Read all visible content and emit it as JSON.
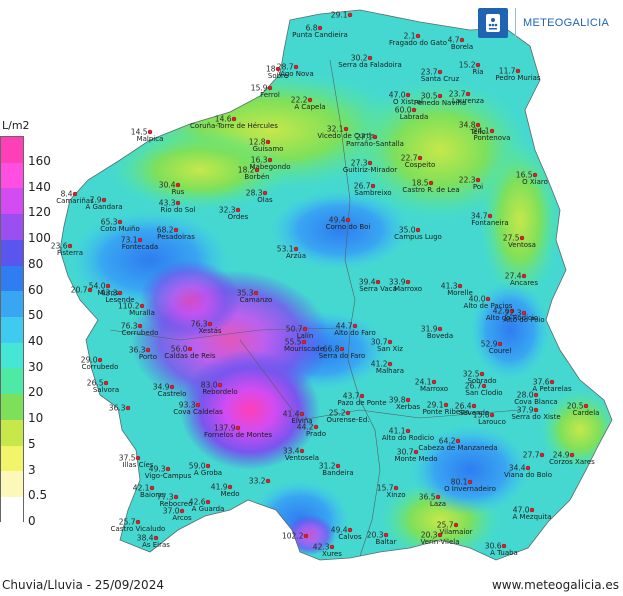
{
  "header": {
    "brand": "METEOGALICIA"
  },
  "legend": {
    "title": "L/m2",
    "levels": [
      {
        "label": "160",
        "color": "#ff3fb5"
      },
      {
        "label": "140",
        "color": "#ff4fe0"
      },
      {
        "label": "120",
        "color": "#d24cf2"
      },
      {
        "label": "100",
        "color": "#9a4ff0"
      },
      {
        "label": "80",
        "color": "#5a55ee"
      },
      {
        "label": "60",
        "color": "#2f7df0"
      },
      {
        "label": "50",
        "color": "#39a6f2"
      },
      {
        "label": "40",
        "color": "#3fcaf0"
      },
      {
        "label": "30",
        "color": "#45e6d6"
      },
      {
        "label": "20",
        "color": "#4fe9a6"
      },
      {
        "label": "10",
        "color": "#7ee05a"
      },
      {
        "label": "5",
        "color": "#c6e84a"
      },
      {
        "label": "3",
        "color": "#f2f56a"
      },
      {
        "label": "0.5",
        "color": "#fbf8b8"
      },
      {
        "label": "0",
        "color": "#ffffff"
      }
    ]
  },
  "footer": {
    "caption": "Chuvia/Lluvia - 25/09/2024",
    "website": "www.meteogalicia.es"
  },
  "stations": [
    {
      "v": "29.1",
      "n": "",
      "gx": 350,
      "gy": 15
    },
    {
      "v": "6.8",
      "n": "Punta Candieira",
      "gx": 320,
      "gy": 28
    },
    {
      "v": "2.1",
      "n": "Fragado do Gato",
      "gx": 418,
      "gy": 36
    },
    {
      "v": "4.7",
      "n": "Borela",
      "gx": 462,
      "gy": 40
    },
    {
      "v": "30.2",
      "n": "Serra da Faladoira",
      "gx": 370,
      "gy": 58
    },
    {
      "v": "28.7",
      "n": "Vigo Nova",
      "gx": 296,
      "gy": 67
    },
    {
      "v": "18",
      "n": "Sobre",
      "gx": 278,
      "gy": 69
    },
    {
      "v": "23.7",
      "n": "Santa Cruz",
      "gx": 440,
      "gy": 72
    },
    {
      "v": "15.2",
      "n": "Ría",
      "gx": 478,
      "gy": 65
    },
    {
      "v": "11.7",
      "n": "Pedro Murias",
      "gx": 518,
      "gy": 71
    },
    {
      "v": "15.9",
      "n": "Ferrol",
      "gx": 270,
      "gy": 88
    },
    {
      "v": "22.2",
      "n": "A Capela",
      "gx": 310,
      "gy": 100
    },
    {
      "v": "47.0",
      "n": "O Xistral",
      "gx": 408,
      "gy": 95
    },
    {
      "v": "30.5",
      "n": "Penedo Naviña",
      "gx": 440,
      "gy": 96
    },
    {
      "v": "23.7",
      "n": "Laurenza",
      "gx": 468,
      "gy": 94
    },
    {
      "v": "60.0",
      "n": "Labrada",
      "gx": 414,
      "gy": 110
    },
    {
      "v": "14.6",
      "n": "Coruña-Torre de Hércules",
      "gx": 234,
      "gy": 119
    },
    {
      "v": "34.8",
      "n": "Tello",
      "gx": 478,
      "gy": 125
    },
    {
      "v": "24.1",
      "n": "Pontenova",
      "gx": 492,
      "gy": 131
    },
    {
      "v": "14.5",
      "n": "Malpica",
      "gx": 150,
      "gy": 132
    },
    {
      "v": "32.1",
      "n": "Vicedo de Curtis",
      "gx": 346,
      "gy": 129
    },
    {
      "v": "27.1",
      "n": "Parraño-Santalla",
      "gx": 375,
      "gy": 137
    },
    {
      "v": "12.8",
      "n": "Guísamo",
      "gx": 268,
      "gy": 142
    },
    {
      "v": "16.3",
      "n": "Mabegondo",
      "gx": 270,
      "gy": 160
    },
    {
      "v": "27.3",
      "n": "Guitiriz-Mirador",
      "gx": 370,
      "gy": 163
    },
    {
      "v": "22.7",
      "n": "Cospeito",
      "gx": 420,
      "gy": 158
    },
    {
      "v": "18.2",
      "n": "Borbén",
      "gx": 257,
      "gy": 170
    },
    {
      "v": "16.5",
      "n": "O Xiaro",
      "gx": 535,
      "gy": 175
    },
    {
      "v": "22.3",
      "n": "Poi",
      "gx": 478,
      "gy": 180
    },
    {
      "v": "30.4",
      "n": "Rus",
      "gx": 178,
      "gy": 185
    },
    {
      "v": "26.7",
      "n": "Sambreixo",
      "gx": 373,
      "gy": 186
    },
    {
      "v": "18.5",
      "n": "Castro R. de Lea",
      "gx": 431,
      "gy": 183
    },
    {
      "v": "8.4",
      "n": "Camariñas",
      "gx": 75,
      "gy": 194
    },
    {
      "v": "7.9",
      "n": "A Gandara",
      "gx": 104,
      "gy": 200
    },
    {
      "v": "28.3",
      "n": "Olas",
      "gx": 265,
      "gy": 193
    },
    {
      "v": "43.3",
      "n": "Río do Sol",
      "gx": 178,
      "gy": 203
    },
    {
      "v": "32.3",
      "n": "Ordes",
      "gx": 238,
      "gy": 210
    },
    {
      "v": "34.7",
      "n": "Fontaneira",
      "gx": 490,
      "gy": 216
    },
    {
      "v": "65.3",
      "n": "Coto Muiño",
      "gx": 120,
      "gy": 222
    },
    {
      "v": "49.4",
      "n": "Corno do Boi",
      "gx": 348,
      "gy": 220
    },
    {
      "v": "68.2",
      "n": "Pesadoiras",
      "gx": 176,
      "gy": 230
    },
    {
      "v": "35.0",
      "n": "Campus Lugo",
      "gx": 418,
      "gy": 230
    },
    {
      "v": "27.5",
      "n": "Ventosa",
      "gx": 522,
      "gy": 238
    },
    {
      "v": "73.1",
      "n": "Fontecada",
      "gx": 140,
      "gy": 240
    },
    {
      "v": "23.6",
      "n": "Fisterra",
      "gx": 70,
      "gy": 246
    },
    {
      "v": "53.1",
      "n": "Arzúa",
      "gx": 296,
      "gy": 249
    },
    {
      "v": "27.4",
      "n": "Ancares",
      "gx": 524,
      "gy": 276
    },
    {
      "v": "39.4",
      "n": "Serra Vaca",
      "gx": 378,
      "gy": 282
    },
    {
      "v": "33.9",
      "n": "Marroxo",
      "gx": 408,
      "gy": 282
    },
    {
      "v": "41.3",
      "n": "Morelle",
      "gx": 460,
      "gy": 286
    },
    {
      "v": "20.7",
      "n": "",
      "gx": 90,
      "gy": 290
    },
    {
      "v": "54.0",
      "n": "Muros",
      "gx": 108,
      "gy": 286
    },
    {
      "v": "43.3",
      "n": "Lesende",
      "gx": 120,
      "gy": 293
    },
    {
      "v": "35.3",
      "n": "Camanzo",
      "gx": 256,
      "gy": 293
    },
    {
      "v": "40.0",
      "n": "Alto de Pacios",
      "gx": 488,
      "gy": 299
    },
    {
      "v": "110.2",
      "n": "Muralla",
      "gx": 142,
      "gy": 306
    },
    {
      "v": "42.6",
      "n": "Alto do Rodicio",
      "gx": 512,
      "gy": 311
    },
    {
      "v": "72.3",
      "n": "Alto do Poio",
      "gx": 524,
      "gy": 313
    },
    {
      "v": "76.3",
      "n": "Xestás",
      "gx": 210,
      "gy": 324
    },
    {
      "v": "50.7",
      "n": "Lalín",
      "gx": 305,
      "gy": 329
    },
    {
      "v": "44.7",
      "n": "Alto do Faro",
      "gx": 355,
      "gy": 326
    },
    {
      "v": "31.9",
      "n": "Boveda",
      "gx": 440,
      "gy": 329
    },
    {
      "v": "76.3",
      "n": "Corrubedo",
      "gx": 140,
      "gy": 326
    },
    {
      "v": "55.5",
      "n": "Mouriscade",
      "gx": 304,
      "gy": 342
    },
    {
      "v": "30.7",
      "n": "San Xiz",
      "gx": 390,
      "gy": 342
    },
    {
      "v": "52.9",
      "n": "Courel",
      "gx": 500,
      "gy": 344
    },
    {
      "v": "36.3",
      "n": "Porto",
      "gx": 148,
      "gy": 350
    },
    {
      "v": "56.0",
      "n": "Caldas de Reis",
      "gx": 190,
      "gy": 349
    },
    {
      "v": "66.8",
      "n": "Serra do Faro",
      "gx": 342,
      "gy": 349
    },
    {
      "v": "29.0",
      "n": "Corrubedo",
      "gx": 100,
      "gy": 360
    },
    {
      "v": "41.2",
      "n": "Malhara",
      "gx": 390,
      "gy": 364
    },
    {
      "v": "26.5",
      "n": "Salvora",
      "gx": 106,
      "gy": 383
    },
    {
      "v": "34.9",
      "n": "Castrelo",
      "gx": 172,
      "gy": 387
    },
    {
      "v": "83.0",
      "n": "Rebordelo",
      "gx": 220,
      "gy": 385
    },
    {
      "v": "24.1",
      "n": "Marroxo",
      "gx": 434,
      "gy": 382
    },
    {
      "v": "32.5",
      "n": "Sobrado",
      "gx": 482,
      "gy": 374
    },
    {
      "v": "37.6",
      "n": "A Petarelas",
      "gx": 552,
      "gy": 382
    },
    {
      "v": "26.7",
      "n": "San Clodio",
      "gx": 484,
      "gy": 386
    },
    {
      "v": "28.0",
      "n": "Cova Blanca",
      "gx": 536,
      "gy": 395
    },
    {
      "v": "43.7",
      "n": "Pazo de Ponte",
      "gx": 362,
      "gy": 396
    },
    {
      "v": "39.8",
      "n": "Xerbas",
      "gx": 408,
      "gy": 400
    },
    {
      "v": "29.1",
      "n": "Ponte Ribeira",
      "gx": 446,
      "gy": 405
    },
    {
      "v": "26.4",
      "n": "Sevendo",
      "gx": 474,
      "gy": 406
    },
    {
      "v": "37.9",
      "n": "Serra do Xiste",
      "gx": 536,
      "gy": 410
    },
    {
      "v": "20.5",
      "n": "Cardela",
      "gx": 586,
      "gy": 406
    },
    {
      "v": "36.3",
      "n": "",
      "gx": 128,
      "gy": 408
    },
    {
      "v": "93.3",
      "n": "Cova Caldelas",
      "gx": 198,
      "gy": 405
    },
    {
      "v": "15.6",
      "n": "Larouco",
      "gx": 492,
      "gy": 415
    },
    {
      "v": "41.4",
      "n": "Elviña",
      "gx": 302,
      "gy": 414
    },
    {
      "v": "25.2",
      "n": "Ourense-Ed.",
      "gx": 348,
      "gy": 413
    },
    {
      "v": "44.2",
      "n": "Prado",
      "gx": 316,
      "gy": 427
    },
    {
      "v": "137.9",
      "n": "Fornelos de Montes",
      "gx": 238,
      "gy": 428
    },
    {
      "v": "41.1",
      "n": "Alto do Rodicio",
      "gx": 408,
      "gy": 431
    },
    {
      "v": "64.2",
      "n": "Cabeza de Manzaneda",
      "gx": 458,
      "gy": 441
    },
    {
      "v": "27.7",
      "n": "",
      "gx": 542,
      "gy": 455
    },
    {
      "v": "24.9",
      "n": "Corzos Xares",
      "gx": 572,
      "gy": 455
    },
    {
      "v": "30.7",
      "n": "Monte Medo",
      "gx": 416,
      "gy": 452
    },
    {
      "v": "33.4",
      "n": "Ventosela",
      "gx": 302,
      "gy": 451
    },
    {
      "v": "37.5",
      "n": "Illas Cíes",
      "gx": 138,
      "gy": 458
    },
    {
      "v": "49.3",
      "n": "Vigo-Campus",
      "gx": 168,
      "gy": 469
    },
    {
      "v": "59.0",
      "n": "A Groba",
      "gx": 208,
      "gy": 466
    },
    {
      "v": "31.2",
      "n": "Bandeira",
      "gx": 338,
      "gy": 466
    },
    {
      "v": "34.4",
      "n": "Viana do Bolo",
      "gx": 528,
      "gy": 468
    },
    {
      "v": "80.1",
      "n": "O Invernadeiro",
      "gx": 470,
      "gy": 482
    },
    {
      "v": "42.1",
      "n": "Baiona",
      "gx": 152,
      "gy": 488
    },
    {
      "v": "41.9",
      "n": "Medo",
      "gx": 230,
      "gy": 487
    },
    {
      "v": "33.2",
      "n": "",
      "gx": 268,
      "gy": 481
    },
    {
      "v": "15.7",
      "n": "Xinzo",
      "gx": 396,
      "gy": 488
    },
    {
      "v": "77.3",
      "n": "Rebocreo",
      "gx": 176,
      "gy": 497
    },
    {
      "v": "42.6",
      "n": "A Guarda",
      "gx": 208,
      "gy": 502
    },
    {
      "v": "36.5",
      "n": "Laza",
      "gx": 438,
      "gy": 497
    },
    {
      "v": "47.0",
      "n": "A Mezquita",
      "gx": 532,
      "gy": 510
    },
    {
      "v": "37.0",
      "n": "Arcos",
      "gx": 182,
      "gy": 511
    },
    {
      "v": "25.7",
      "n": "Castro Vicaludo",
      "gx": 138,
      "gy": 522
    },
    {
      "v": "49.4",
      "n": "Calvos",
      "gx": 350,
      "gy": 530
    },
    {
      "v": "25.7",
      "n": "Vilamaior",
      "gx": 456,
      "gy": 525
    },
    {
      "v": "20.3",
      "n": "Verín-Vilela",
      "gx": 440,
      "gy": 535
    },
    {
      "v": "38.4",
      "n": "As Eiras",
      "gx": 156,
      "gy": 538
    },
    {
      "v": "102.2",
      "n": "",
      "gx": 306,
      "gy": 536
    },
    {
      "v": "20.3",
      "n": "Baltar",
      "gx": 386,
      "gy": 535
    },
    {
      "v": "42.3",
      "n": "Xures",
      "gx": 332,
      "gy": 547
    },
    {
      "v": "30.6",
      "n": "A Tuaba",
      "gx": 504,
      "gy": 546
    }
  ]
}
